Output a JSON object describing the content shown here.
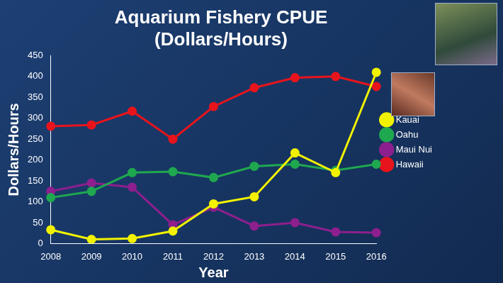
{
  "chart_data": {
    "type": "line",
    "title": [
      "Aquarium Fishery CPUE",
      "(Dollars/Hours)"
    ],
    "x_label": "Year",
    "y_label": "Dollars/Hours",
    "categories": [
      "2008",
      "2009",
      "2010",
      "2011",
      "2012",
      "2013",
      "2014",
      "2015",
      "2016"
    ],
    "series": [
      {
        "name": "Kauai",
        "color": "#f2f200",
        "values": [
          33,
          10,
          12,
          30,
          95,
          112,
          217,
          170,
          410
        ]
      },
      {
        "name": "Oahu",
        "color": "#1fa84f",
        "values": [
          110,
          125,
          170,
          172,
          158,
          185,
          190,
          175,
          190
        ]
      },
      {
        "name": "Maui Nui",
        "color": "#8e1f8e",
        "values": [
          125,
          145,
          135,
          45,
          87,
          42,
          50,
          28,
          26
        ]
      },
      {
        "name": "Hawaii",
        "color": "#e8141c",
        "values": [
          281,
          284,
          317,
          250,
          328,
          373,
          397,
          400,
          376
        ]
      }
    ],
    "ylim": [
      0,
      450
    ],
    "yticks": [
      0,
      50,
      100,
      150,
      200,
      250,
      300,
      350,
      400,
      450
    ],
    "grid": false,
    "legend": "right",
    "marker": "circle"
  }
}
